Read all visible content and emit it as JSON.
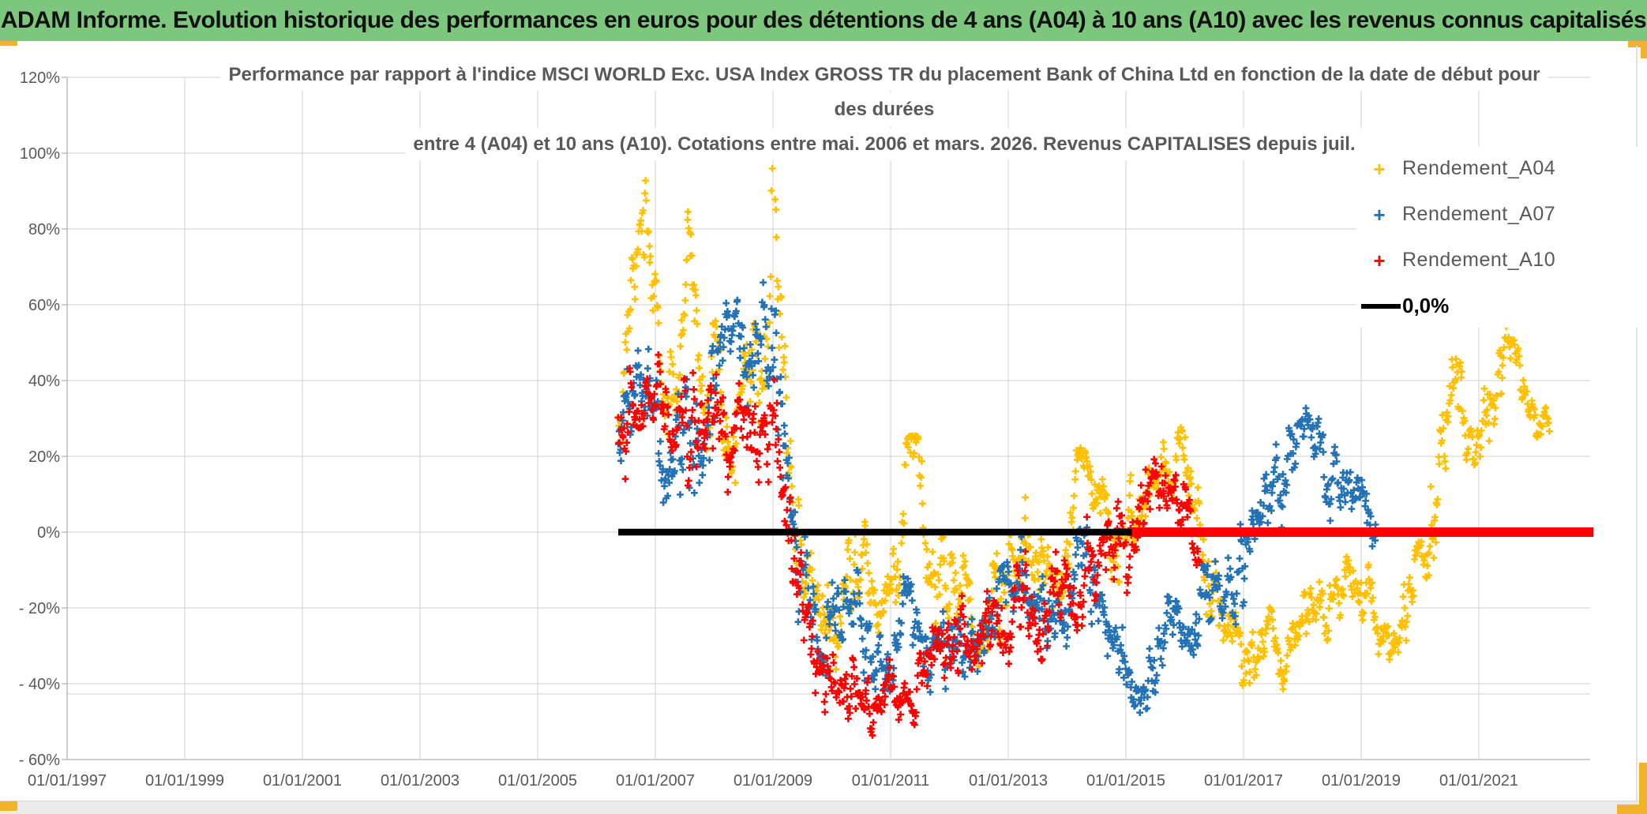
{
  "header": {
    "title": "ADAM Informe. Evolution historique des performances en euros pour des détentions de 4 ans (A04) à 10 ans (A10) avec les revenus connus capitalisés"
  },
  "colors": {
    "banner_green": "#7CC67E",
    "accent_gold": "#EFB427",
    "grid": "#D9D9D9",
    "axis": "#BFBFBF",
    "text_gray": "#595959",
    "series_a04": "#FFC000",
    "series_a07": "#2272B5",
    "series_a10": "#FF0000",
    "zero_line": "#000000"
  },
  "chart_data": {
    "type": "scatter",
    "title_lines": [
      "Performance par rapport à l'indice MSCI WORLD Exc. USA Index GROSS TR  du placement Bank of China Ltd en fonction de la date de début pour",
      "des durées",
      "entre 4 (A04) et 10 ans (A10). Cotations entre mai. 2006 et mars. 2026. Revenus CAPITALISES depuis juil."
    ],
    "legend_position": "right-top",
    "grid": true,
    "marker": "plus",
    "x_axis": {
      "range_years": [
        1997.0,
        2022.9
      ],
      "tick_labels": [
        "01/01/1997",
        "01/01/1999",
        "01/01/2001",
        "01/01/2003",
        "01/01/2005",
        "01/01/2007",
        "01/01/2009",
        "01/01/2011",
        "01/01/2013",
        "01/01/2015",
        "01/01/2017",
        "01/01/2019",
        "01/01/2021"
      ],
      "tick_years": [
        1997,
        1999,
        2001,
        2003,
        2005,
        2007,
        2009,
        2011,
        2013,
        2015,
        2017,
        2019,
        2021
      ]
    },
    "y_axis": {
      "range_pct": [
        -60,
        120
      ],
      "tick_values": [
        120,
        100,
        80,
        60,
        40,
        20,
        0,
        -20,
        -40,
        -60
      ],
      "tick_labels": [
        "120%",
        "100%",
        "80%",
        "60%",
        "40%",
        "20%",
        "0%",
        "- 20%",
        "- 40%",
        "- 60%"
      ]
    },
    "zero_line": {
      "label": "0,0%",
      "color": "#000000",
      "start": 2006.37,
      "end": 2015.15,
      "value_pct": 0
    },
    "a10_flat_line": {
      "color": "#FF0000",
      "start": 2015.1,
      "end": 2022.95,
      "value_pct": 0
    },
    "series": [
      {
        "name": "Rendement_A04",
        "color": "#FFC000",
        "start": 2006.37,
        "end": 2022.2,
        "envelope_t_center_spread": [
          [
            2006.37,
            22,
            6
          ],
          [
            2006.5,
            45,
            12
          ],
          [
            2006.62,
            62,
            7
          ],
          [
            2006.75,
            85,
            8
          ],
          [
            2006.85,
            78,
            10
          ],
          [
            2006.95,
            65,
            7
          ],
          [
            2007.1,
            48,
            8
          ],
          [
            2007.25,
            40,
            9
          ],
          [
            2007.4,
            55,
            9
          ],
          [
            2007.55,
            72,
            9
          ],
          [
            2007.7,
            42,
            10
          ],
          [
            2007.85,
            32,
            8
          ],
          [
            2008.0,
            48,
            8
          ],
          [
            2008.15,
            38,
            9
          ],
          [
            2008.3,
            26,
            9
          ],
          [
            2008.45,
            36,
            9
          ],
          [
            2008.6,
            50,
            9
          ],
          [
            2008.75,
            34,
            9
          ],
          [
            2008.9,
            35,
            10
          ],
          [
            2009.0,
            80,
            12
          ],
          [
            2009.1,
            60,
            15
          ],
          [
            2009.2,
            28,
            12
          ],
          [
            2009.35,
            0,
            10
          ],
          [
            2009.5,
            -12,
            7
          ],
          [
            2009.7,
            -18,
            7
          ],
          [
            2009.9,
            -22,
            7
          ],
          [
            2010.1,
            -25,
            6
          ],
          [
            2010.3,
            -17,
            8
          ],
          [
            2010.5,
            -8,
            8
          ],
          [
            2010.7,
            -14,
            8
          ],
          [
            2010.9,
            -18,
            7
          ],
          [
            2011.1,
            -2,
            9
          ],
          [
            2011.3,
            10,
            8
          ],
          [
            2011.45,
            16,
            5
          ],
          [
            2011.6,
            2,
            9
          ],
          [
            2011.8,
            -12,
            8
          ],
          [
            2012.0,
            -20,
            7
          ],
          [
            2012.2,
            -14,
            7
          ],
          [
            2012.4,
            -22,
            6
          ],
          [
            2012.6,
            -26,
            6
          ],
          [
            2012.8,
            -19,
            7
          ],
          [
            2013.0,
            -10,
            7
          ],
          [
            2013.2,
            -4,
            8
          ],
          [
            2013.4,
            4,
            8
          ],
          [
            2013.6,
            -2,
            8
          ],
          [
            2013.8,
            -6,
            8
          ],
          [
            2014.0,
            2,
            8
          ],
          [
            2014.2,
            12,
            7
          ],
          [
            2014.35,
            18,
            5
          ],
          [
            2014.5,
            10,
            7
          ],
          [
            2014.7,
            2,
            7
          ],
          [
            2014.9,
            -4,
            7
          ],
          [
            2015.1,
            2,
            8
          ],
          [
            2015.3,
            9,
            7
          ],
          [
            2015.5,
            14,
            6
          ],
          [
            2015.7,
            18,
            5
          ],
          [
            2015.9,
            19,
            5
          ],
          [
            2016.1,
            8,
            8
          ],
          [
            2016.3,
            -6,
            8
          ],
          [
            2016.5,
            -16,
            7
          ],
          [
            2016.7,
            -26,
            6
          ],
          [
            2016.9,
            -31,
            6
          ],
          [
            2017.1,
            -33,
            5
          ],
          [
            2017.3,
            -27,
            6
          ],
          [
            2017.5,
            -31,
            5
          ],
          [
            2017.7,
            -36,
            4
          ],
          [
            2017.9,
            -30,
            5
          ],
          [
            2018.1,
            -24,
            6
          ],
          [
            2018.3,
            -19,
            6
          ],
          [
            2018.5,
            -23,
            5
          ],
          [
            2018.7,
            -19,
            6
          ],
          [
            2018.9,
            -14,
            6
          ],
          [
            2019.1,
            -19,
            6
          ],
          [
            2019.3,
            -25,
            5
          ],
          [
            2019.5,
            -29,
            4
          ],
          [
            2019.7,
            -20,
            6
          ],
          [
            2019.9,
            -11,
            6
          ],
          [
            2020.1,
            -8,
            9
          ],
          [
            2020.3,
            12,
            12
          ],
          [
            2020.5,
            45,
            8
          ],
          [
            2020.65,
            38,
            8
          ],
          [
            2020.8,
            28,
            8
          ],
          [
            2021.0,
            34,
            7
          ],
          [
            2021.15,
            27,
            6
          ],
          [
            2021.3,
            36,
            7
          ],
          [
            2021.45,
            50,
            4
          ],
          [
            2021.6,
            46,
            5
          ],
          [
            2021.75,
            42,
            5
          ],
          [
            2021.9,
            31,
            5
          ],
          [
            2022.05,
            27,
            4
          ],
          [
            2022.2,
            26,
            3
          ]
        ]
      },
      {
        "name": "Rendement_A07",
        "color": "#2272B5",
        "start": 2006.37,
        "end": 2019.25,
        "envelope_t_center_spread": [
          [
            2006.37,
            20,
            7
          ],
          [
            2006.55,
            32,
            9
          ],
          [
            2006.75,
            38,
            9
          ],
          [
            2006.95,
            28,
            9
          ],
          [
            2007.15,
            15,
            8
          ],
          [
            2007.35,
            22,
            9
          ],
          [
            2007.55,
            32,
            10
          ],
          [
            2007.75,
            22,
            9
          ],
          [
            2007.95,
            30,
            9
          ],
          [
            2008.15,
            48,
            10
          ],
          [
            2008.35,
            58,
            7
          ],
          [
            2008.5,
            45,
            10
          ],
          [
            2008.65,
            38,
            9
          ],
          [
            2008.8,
            55,
            8
          ],
          [
            2008.95,
            50,
            10
          ],
          [
            2009.1,
            30,
            12
          ],
          [
            2009.25,
            8,
            10
          ],
          [
            2009.45,
            -8,
            9
          ],
          [
            2009.65,
            -18,
            8
          ],
          [
            2009.85,
            -25,
            7
          ],
          [
            2010.05,
            -23,
            7
          ],
          [
            2010.25,
            -15,
            8
          ],
          [
            2010.45,
            -24,
            7
          ],
          [
            2010.65,
            -33,
            6
          ],
          [
            2010.85,
            -38,
            6
          ],
          [
            2011.05,
            -28,
            7
          ],
          [
            2011.25,
            -18,
            8
          ],
          [
            2011.45,
            -26,
            7
          ],
          [
            2011.65,
            -34,
            6
          ],
          [
            2011.85,
            -28,
            7
          ],
          [
            2012.05,
            -30,
            6
          ],
          [
            2012.25,
            -34,
            6
          ],
          [
            2012.45,
            -26,
            7
          ],
          [
            2012.65,
            -30,
            6
          ],
          [
            2012.85,
            -24,
            7
          ],
          [
            2013.05,
            -17,
            7
          ],
          [
            2013.25,
            -11,
            8
          ],
          [
            2013.45,
            -18,
            7
          ],
          [
            2013.65,
            -26,
            6
          ],
          [
            2013.85,
            -21,
            7
          ],
          [
            2014.05,
            -15,
            7
          ],
          [
            2014.25,
            -9,
            7
          ],
          [
            2014.45,
            -16,
            7
          ],
          [
            2014.65,
            -26,
            6
          ],
          [
            2014.85,
            -33,
            6
          ],
          [
            2015.05,
            -39,
            5
          ],
          [
            2015.2,
            -42,
            3
          ],
          [
            2015.35,
            -36,
            6
          ],
          [
            2015.55,
            -28,
            7
          ],
          [
            2015.75,
            -24,
            7
          ],
          [
            2015.95,
            -29,
            6
          ],
          [
            2016.15,
            -23,
            7
          ],
          [
            2016.35,
            -14,
            7
          ],
          [
            2016.55,
            -18,
            7
          ],
          [
            2016.75,
            -14,
            7
          ],
          [
            2016.95,
            -9,
            7
          ],
          [
            2017.15,
            -4,
            7
          ],
          [
            2017.35,
            3,
            7
          ],
          [
            2017.55,
            11,
            7
          ],
          [
            2017.75,
            18,
            7
          ],
          [
            2017.95,
            26,
            6
          ],
          [
            2018.1,
            28,
            4
          ],
          [
            2018.25,
            22,
            6
          ],
          [
            2018.45,
            15,
            6
          ],
          [
            2018.65,
            10,
            6
          ],
          [
            2018.8,
            14,
            5
          ],
          [
            2018.95,
            8,
            5
          ],
          [
            2019.1,
            3,
            4
          ],
          [
            2019.25,
            2,
            3
          ]
        ]
      },
      {
        "name": "Rendement_A10",
        "color": "#FF0000",
        "start": 2006.37,
        "end": 2016.25,
        "envelope_t_center_spread": [
          [
            2006.37,
            18,
            7
          ],
          [
            2006.55,
            28,
            9
          ],
          [
            2006.75,
            38,
            8
          ],
          [
            2006.9,
            42,
            6
          ],
          [
            2007.05,
            30,
            9
          ],
          [
            2007.25,
            17,
            8
          ],
          [
            2007.45,
            23,
            9
          ],
          [
            2007.65,
            28,
            9
          ],
          [
            2007.85,
            20,
            8
          ],
          [
            2008.05,
            32,
            9
          ],
          [
            2008.25,
            26,
            9
          ],
          [
            2008.45,
            30,
            8
          ],
          [
            2008.6,
            35,
            7
          ],
          [
            2008.75,
            24,
            9
          ],
          [
            2008.95,
            32,
            10
          ],
          [
            2009.1,
            20,
            12
          ],
          [
            2009.25,
            0,
            10
          ],
          [
            2009.4,
            -14,
            9
          ],
          [
            2009.55,
            -24,
            7
          ],
          [
            2009.75,
            -32,
            6
          ],
          [
            2009.95,
            -38,
            6
          ],
          [
            2010.15,
            -42,
            5
          ],
          [
            2010.35,
            -36,
            7
          ],
          [
            2010.55,
            -44,
            4
          ],
          [
            2010.75,
            -47,
            4
          ],
          [
            2010.95,
            -44,
            5
          ],
          [
            2011.15,
            -40,
            6
          ],
          [
            2011.35,
            -44,
            4
          ],
          [
            2011.55,
            -38,
            6
          ],
          [
            2011.75,
            -31,
            7
          ],
          [
            2011.95,
            -35,
            6
          ],
          [
            2012.15,
            -29,
            7
          ],
          [
            2012.35,
            -24,
            7
          ],
          [
            2012.55,
            -29,
            6
          ],
          [
            2012.75,
            -23,
            7
          ],
          [
            2012.95,
            -27,
            6
          ],
          [
            2013.15,
            -22,
            7
          ],
          [
            2013.35,
            -17,
            7
          ],
          [
            2013.55,
            -23,
            6
          ],
          [
            2013.75,
            -16,
            7
          ],
          [
            2013.95,
            -19,
            6
          ],
          [
            2014.15,
            -14,
            7
          ],
          [
            2014.35,
            -9,
            7
          ],
          [
            2014.55,
            -15,
            6
          ],
          [
            2014.75,
            -9,
            7
          ],
          [
            2014.95,
            -4,
            8
          ],
          [
            2015.15,
            2,
            8
          ],
          [
            2015.35,
            9,
            7
          ],
          [
            2015.55,
            14,
            5
          ],
          [
            2015.75,
            9,
            7
          ],
          [
            2015.95,
            3,
            6
          ],
          [
            2016.1,
            -2,
            5
          ],
          [
            2016.25,
            -4,
            4
          ]
        ]
      }
    ]
  }
}
